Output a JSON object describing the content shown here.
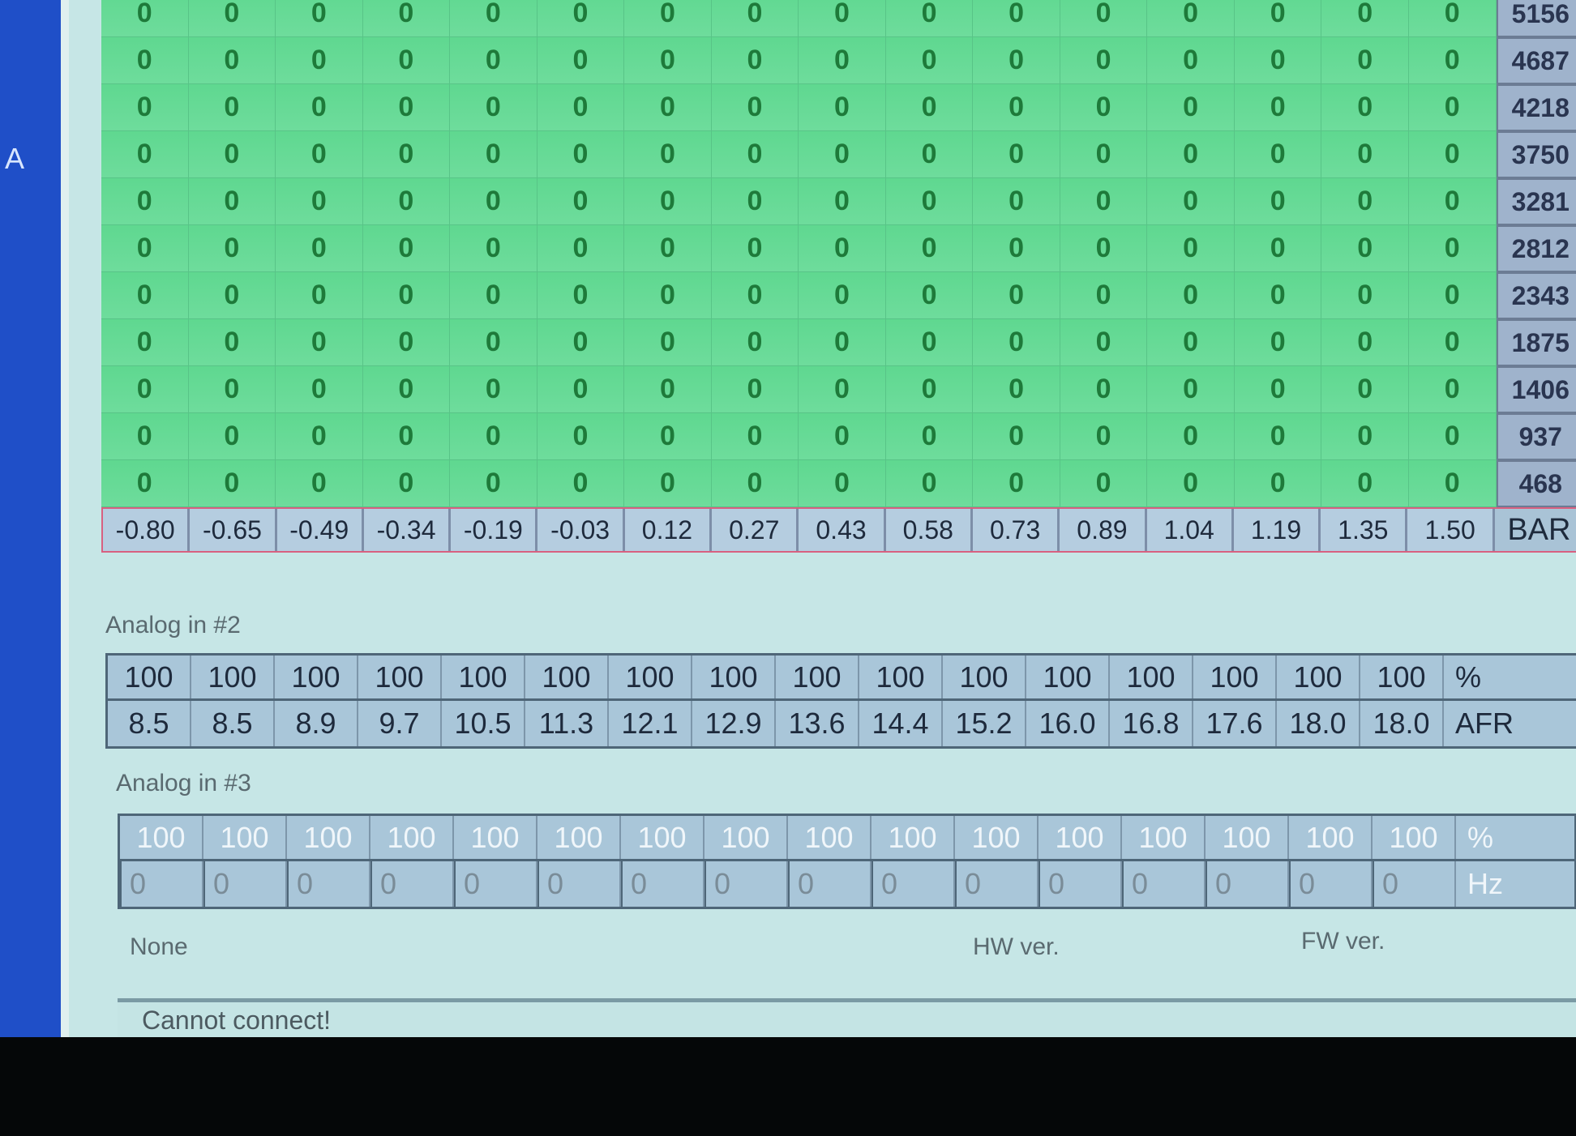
{
  "left_edge_letter": "A",
  "fuel_map": {
    "rows": [
      {
        "rpm": "5156",
        "values": [
          0,
          0,
          0,
          0,
          0,
          0,
          0,
          0,
          0,
          0,
          0,
          0,
          0,
          0,
          0,
          0
        ]
      },
      {
        "rpm": "4687",
        "values": [
          0,
          0,
          0,
          0,
          0,
          0,
          0,
          0,
          0,
          0,
          0,
          0,
          0,
          0,
          0,
          0
        ]
      },
      {
        "rpm": "4218",
        "values": [
          0,
          0,
          0,
          0,
          0,
          0,
          0,
          0,
          0,
          0,
          0,
          0,
          0,
          0,
          0,
          0
        ]
      },
      {
        "rpm": "3750",
        "values": [
          0,
          0,
          0,
          0,
          0,
          0,
          0,
          0,
          0,
          0,
          0,
          0,
          0,
          0,
          0,
          0
        ]
      },
      {
        "rpm": "3281",
        "values": [
          0,
          0,
          0,
          0,
          0,
          0,
          0,
          0,
          0,
          0,
          0,
          0,
          0,
          0,
          0,
          0
        ]
      },
      {
        "rpm": "2812",
        "values": [
          0,
          0,
          0,
          0,
          0,
          0,
          0,
          0,
          0,
          0,
          0,
          0,
          0,
          0,
          0,
          0
        ]
      },
      {
        "rpm": "2343",
        "values": [
          0,
          0,
          0,
          0,
          0,
          0,
          0,
          0,
          0,
          0,
          0,
          0,
          0,
          0,
          0,
          0
        ]
      },
      {
        "rpm": "1875",
        "values": [
          0,
          0,
          0,
          0,
          0,
          0,
          0,
          0,
          0,
          0,
          0,
          0,
          0,
          0,
          0,
          0
        ]
      },
      {
        "rpm": "1406",
        "values": [
          0,
          0,
          0,
          0,
          0,
          0,
          0,
          0,
          0,
          0,
          0,
          0,
          0,
          0,
          0,
          0
        ]
      },
      {
        "rpm": "937",
        "values": [
          0,
          0,
          0,
          0,
          0,
          0,
          0,
          0,
          0,
          0,
          0,
          0,
          0,
          0,
          0,
          0
        ]
      },
      {
        "rpm": "468",
        "values": [
          0,
          0,
          0,
          0,
          0,
          0,
          0,
          0,
          0,
          0,
          0,
          0,
          0,
          0,
          0,
          0
        ]
      }
    ],
    "pressure": [
      "-0.80",
      "-0.65",
      "-0.49",
      "-0.34",
      "-0.19",
      "-0.03",
      "0.12",
      "0.27",
      "0.43",
      "0.58",
      "0.73",
      "0.89",
      "1.04",
      "1.19",
      "1.35",
      "1.50"
    ],
    "pressure_unit": "BAR"
  },
  "analog2": {
    "label": "Analog in #2",
    "row1": [
      "100",
      "100",
      "100",
      "100",
      "100",
      "100",
      "100",
      "100",
      "100",
      "100",
      "100",
      "100",
      "100",
      "100",
      "100",
      "100"
    ],
    "row1_unit": "%",
    "row2": [
      "8.5",
      "8.5",
      "8.9",
      "9.7",
      "10.5",
      "11.3",
      "12.1",
      "12.9",
      "13.6",
      "14.4",
      "15.2",
      "16.0",
      "16.8",
      "17.6",
      "18.0",
      "18.0"
    ],
    "row2_unit": "AFR"
  },
  "analog3": {
    "label": "Analog in #3",
    "row1": [
      "100",
      "100",
      "100",
      "100",
      "100",
      "100",
      "100",
      "100",
      "100",
      "100",
      "100",
      "100",
      "100",
      "100",
      "100",
      "100"
    ],
    "row1_unit": "%",
    "row2": [
      "0",
      "0",
      "0",
      "0",
      "0",
      "0",
      "0",
      "0",
      "0",
      "0",
      "0",
      "0",
      "0",
      "0",
      "0",
      "0"
    ],
    "row2_unit": "Hz"
  },
  "info": {
    "device": "None",
    "hw_ver": "HW ver.",
    "fw_ver": "FW ver."
  },
  "status": "Cannot connect!"
}
